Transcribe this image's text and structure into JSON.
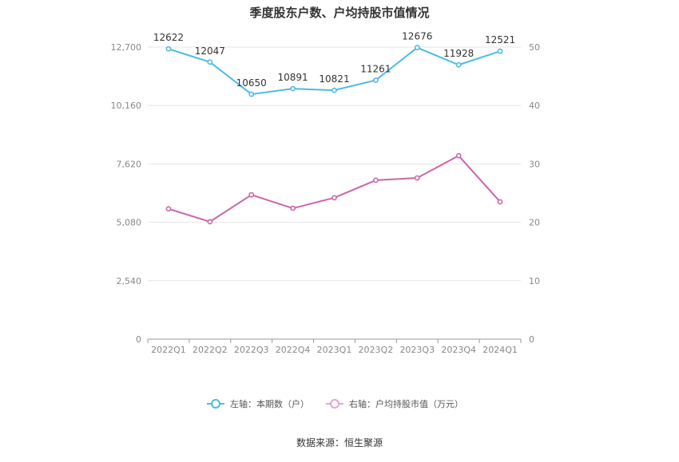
{
  "chart_data": {
    "type": "line",
    "title": "季度股东户数、户均持股市值情况",
    "categories": [
      "2022Q1",
      "2022Q2",
      "2022Q3",
      "2022Q4",
      "2023Q1",
      "2023Q2",
      "2023Q3",
      "2023Q4",
      "2024Q1"
    ],
    "left_axis": {
      "ylim": [
        0,
        12700
      ],
      "ticks": [
        "0",
        "2,540",
        "5,080",
        "7,620",
        "10,160",
        "12,700"
      ]
    },
    "right_axis": {
      "ylim": [
        0,
        50
      ],
      "ticks": [
        "0",
        "10",
        "20",
        "30",
        "40",
        "50"
      ]
    },
    "series": [
      {
        "name": "左轴：本期数（户）",
        "axis": "left",
        "color": "#4dbbe8",
        "values": [
          12622,
          12047,
          10650,
          10891,
          10821,
          11261,
          12676,
          11928,
          12521
        ],
        "labels": [
          "12622",
          "12047",
          "10650",
          "10891",
          "10821",
          "11261",
          "12676",
          "11928",
          "12521"
        ]
      },
      {
        "name": "右轴：户均持股市值（万元）",
        "axis": "right",
        "color": "#cc66aa",
        "values": [
          22.3,
          20.1,
          24.7,
          22.4,
          24.2,
          27.2,
          27.6,
          31.4,
          23.5
        ]
      }
    ],
    "grid": true,
    "legend_position": "bottom"
  },
  "source": "数据来源：恒生聚源"
}
